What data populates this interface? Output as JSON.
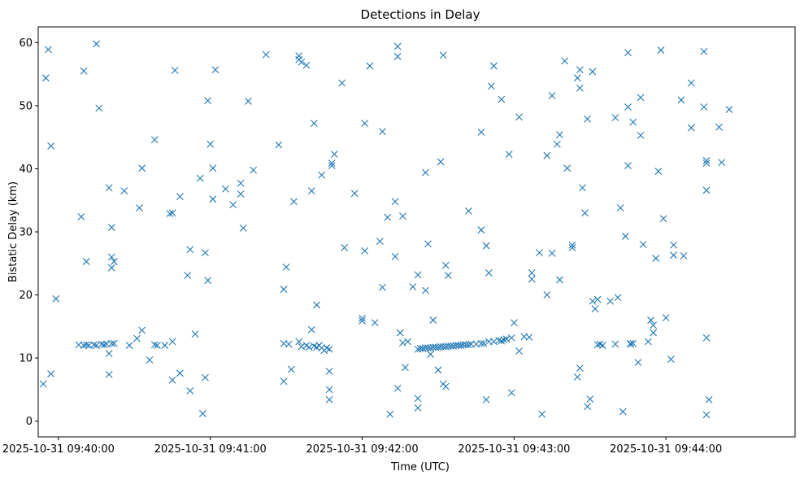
{
  "chart_data": {
    "type": "scatter",
    "title": "Detections in Delay",
    "xlabel": "Time (UTC)",
    "ylabel": "Bistatic Delay (km)",
    "marker": "x",
    "color": "#1f77b4",
    "grid": false,
    "xlim": [
      "2025-10-31 09:39:52",
      "2025-10-31 09:44:51"
    ],
    "ylim": [
      -2.5,
      62.5
    ],
    "xticks": [
      {
        "t": "2025-10-31 09:40:00",
        "label": "2025-10-31 09:40:00"
      },
      {
        "t": "2025-10-31 09:41:00",
        "label": "2025-10-31 09:41:00"
      },
      {
        "t": "2025-10-31 09:42:00",
        "label": "2025-10-31 09:42:00"
      },
      {
        "t": "2025-10-31 09:43:00",
        "label": "2025-10-31 09:43:00"
      },
      {
        "t": "2025-10-31 09:44:00",
        "label": "2025-10-31 09:44:00"
      }
    ],
    "yticks": [
      0,
      10,
      20,
      30,
      40,
      50,
      60
    ],
    "points": [
      [
        "2025-10-31 09:39:54",
        5.9
      ],
      [
        "2025-10-31 09:39:55",
        54.4
      ],
      [
        "2025-10-31 09:39:56",
        58.9
      ],
      [
        "2025-10-31 09:39:57",
        43.6
      ],
      [
        "2025-10-31 09:39:57",
        7.5
      ],
      [
        "2025-10-31 09:39:59",
        19.4
      ],
      [
        "2025-10-31 09:40:09",
        32.4
      ],
      [
        "2025-10-31 09:40:10",
        55.5
      ],
      [
        "2025-10-31 09:40:11",
        25.3
      ],
      [
        "2025-10-31 09:40:15",
        59.8
      ],
      [
        "2025-10-31 09:40:16",
        49.6
      ],
      [
        "2025-10-31 09:40:08",
        12.1
      ],
      [
        "2025-10-31 09:40:10",
        12.0
      ],
      [
        "2025-10-31 09:40:11",
        12.1
      ],
      [
        "2025-10-31 09:40:12",
        12.0
      ],
      [
        "2025-10-31 09:40:14",
        12.1
      ],
      [
        "2025-10-31 09:40:15",
        12.0
      ],
      [
        "2025-10-31 09:40:17",
        12.2
      ],
      [
        "2025-10-31 09:40:18",
        12.1
      ],
      [
        "2025-10-31 09:40:19",
        12.2
      ],
      [
        "2025-10-31 09:40:21",
        12.3
      ],
      [
        "2025-10-31 09:40:22",
        12.3
      ],
      [
        "2025-10-31 09:40:20",
        10.7
      ],
      [
        "2025-10-31 09:40:20",
        7.4
      ],
      [
        "2025-10-31 09:40:20",
        37.0
      ],
      [
        "2025-10-31 09:40:21",
        24.3
      ],
      [
        "2025-10-31 09:40:21",
        30.7
      ],
      [
        "2025-10-31 09:40:21",
        26.0
      ],
      [
        "2025-10-31 09:40:22",
        25.3
      ],
      [
        "2025-10-31 09:40:26",
        36.5
      ],
      [
        "2025-10-31 09:40:28",
        12.0
      ],
      [
        "2025-10-31 09:40:31",
        13.1
      ],
      [
        "2025-10-31 09:40:32",
        33.8
      ],
      [
        "2025-10-31 09:40:33",
        40.1
      ],
      [
        "2025-10-31 09:40:33",
        14.4
      ],
      [
        "2025-10-31 09:40:36",
        9.7
      ],
      [
        "2025-10-31 09:40:38",
        44.6
      ],
      [
        "2025-10-31 09:40:38",
        12.1
      ],
      [
        "2025-10-31 09:40:39",
        12.0
      ],
      [
        "2025-10-31 09:40:42",
        12.0
      ],
      [
        "2025-10-31 09:40:44",
        32.9
      ],
      [
        "2025-10-31 09:40:45",
        33.0
      ],
      [
        "2025-10-31 09:40:45",
        6.5
      ],
      [
        "2025-10-31 09:40:45",
        12.6
      ],
      [
        "2025-10-31 09:40:46",
        55.6
      ],
      [
        "2025-10-31 09:40:48",
        7.6
      ],
      [
        "2025-10-31 09:40:48",
        35.6
      ],
      [
        "2025-10-31 09:40:51",
        23.1
      ],
      [
        "2025-10-31 09:40:52",
        27.2
      ],
      [
        "2025-10-31 09:40:52",
        4.8
      ],
      [
        "2025-10-31 09:40:54",
        13.8
      ],
      [
        "2025-10-31 09:40:56",
        38.5
      ],
      [
        "2025-10-31 09:40:57",
        1.2
      ],
      [
        "2025-10-31 09:40:58",
        26.7
      ],
      [
        "2025-10-31 09:40:58",
        6.9
      ],
      [
        "2025-10-31 09:40:59",
        22.3
      ],
      [
        "2025-10-31 09:40:59",
        50.8
      ],
      [
        "2025-10-31 09:41:00",
        43.9
      ],
      [
        "2025-10-31 09:41:01",
        40.1
      ],
      [
        "2025-10-31 09:41:01",
        35.2
      ],
      [
        "2025-10-31 09:41:02",
        55.7
      ],
      [
        "2025-10-31 09:41:06",
        36.8
      ],
      [
        "2025-10-31 09:41:09",
        34.3
      ],
      [
        "2025-10-31 09:41:12",
        37.7
      ],
      [
        "2025-10-31 09:41:12",
        36.0
      ],
      [
        "2025-10-31 09:41:13",
        30.6
      ],
      [
        "2025-10-31 09:41:15",
        50.7
      ],
      [
        "2025-10-31 09:41:17",
        39.8
      ],
      [
        "2025-10-31 09:41:22",
        58.1
      ],
      [
        "2025-10-31 09:41:27",
        43.8
      ],
      [
        "2025-10-31 09:41:29",
        20.9
      ],
      [
        "2025-10-31 09:41:29",
        6.3
      ],
      [
        "2025-10-31 09:41:29",
        12.3
      ],
      [
        "2025-10-31 09:41:30",
        24.4
      ],
      [
        "2025-10-31 09:41:31",
        12.2
      ],
      [
        "2025-10-31 09:41:32",
        8.2
      ],
      [
        "2025-10-31 09:41:33",
        34.8
      ],
      [
        "2025-10-31 09:41:35",
        57.3
      ],
      [
        "2025-10-31 09:41:35",
        57.9
      ],
      [
        "2025-10-31 09:41:36",
        56.9
      ],
      [
        "2025-10-31 09:41:38",
        56.4
      ],
      [
        "2025-10-31 09:41:35",
        12.6
      ],
      [
        "2025-10-31 09:41:36",
        11.8
      ],
      [
        "2025-10-31 09:41:38",
        12.0
      ],
      [
        "2025-10-31 09:41:39",
        11.7
      ],
      [
        "2025-10-31 09:41:41",
        11.9
      ],
      [
        "2025-10-31 09:41:42",
        11.7
      ],
      [
        "2025-10-31 09:41:43",
        12.0
      ],
      [
        "2025-10-31 09:41:44",
        11.6
      ],
      [
        "2025-10-31 09:41:45",
        11.2
      ],
      [
        "2025-10-31 09:41:46",
        11.6
      ],
      [
        "2025-10-31 09:41:47",
        11.4
      ],
      [
        "2025-10-31 09:41:40",
        14.5
      ],
      [
        "2025-10-31 09:41:40",
        36.5
      ],
      [
        "2025-10-31 09:41:41",
        47.2
      ],
      [
        "2025-10-31 09:41:42",
        18.4
      ],
      [
        "2025-10-31 09:41:44",
        39.0
      ],
      [
        "2025-10-31 09:41:47",
        7.9
      ],
      [
        "2025-10-31 09:41:47",
        5.0
      ],
      [
        "2025-10-31 09:41:47",
        3.4
      ],
      [
        "2025-10-31 09:41:48",
        40.5
      ],
      [
        "2025-10-31 09:41:48",
        40.9
      ],
      [
        "2025-10-31 09:41:49",
        42.3
      ],
      [
        "2025-10-31 09:41:52",
        53.6
      ],
      [
        "2025-10-31 09:41:53",
        27.5
      ],
      [
        "2025-10-31 09:41:57",
        36.1
      ],
      [
        "2025-10-31 09:42:00",
        15.9
      ],
      [
        "2025-10-31 09:42:00",
        16.3
      ],
      [
        "2025-10-31 09:42:01",
        47.2
      ],
      [
        "2025-10-31 09:42:01",
        27.0
      ],
      [
        "2025-10-31 09:42:03",
        56.3
      ],
      [
        "2025-10-31 09:42:05",
        15.6
      ],
      [
        "2025-10-31 09:42:07",
        28.5
      ],
      [
        "2025-10-31 09:42:08",
        45.9
      ],
      [
        "2025-10-31 09:42:08",
        21.2
      ],
      [
        "2025-10-31 09:42:10",
        32.3
      ],
      [
        "2025-10-31 09:42:11",
        1.1
      ],
      [
        "2025-10-31 09:42:13",
        34.8
      ],
      [
        "2025-10-31 09:42:13",
        26.1
      ],
      [
        "2025-10-31 09:42:14",
        59.4
      ],
      [
        "2025-10-31 09:42:14",
        57.8
      ],
      [
        "2025-10-31 09:42:14",
        5.2
      ],
      [
        "2025-10-31 09:42:15",
        14.0
      ],
      [
        "2025-10-31 09:42:16",
        12.4
      ],
      [
        "2025-10-31 09:42:16",
        32.5
      ],
      [
        "2025-10-31 09:42:17",
        8.5
      ],
      [
        "2025-10-31 09:42:18",
        12.6
      ],
      [
        "2025-10-31 09:42:20",
        21.3
      ],
      [
        "2025-10-31 09:42:22",
        23.2
      ],
      [
        "2025-10-31 09:42:22",
        3.6
      ],
      [
        "2025-10-31 09:42:22",
        2.1
      ],
      [
        "2025-10-31 09:42:25",
        39.4
      ],
      [
        "2025-10-31 09:42:25",
        20.7
      ],
      [
        "2025-10-31 09:42:26",
        28.1
      ],
      [
        "2025-10-31 09:42:27",
        10.6
      ],
      [
        "2025-10-31 09:42:28",
        16.0
      ],
      [
        "2025-10-31 09:42:30",
        8.1
      ],
      [
        "2025-10-31 09:42:31",
        41.1
      ],
      [
        "2025-10-31 09:42:32",
        5.9
      ],
      [
        "2025-10-31 09:42:33",
        5.5
      ],
      [
        "2025-10-31 09:42:32",
        58.0
      ],
      [
        "2025-10-31 09:42:33",
        24.7
      ],
      [
        "2025-10-31 09:42:34",
        23.1
      ],
      [
        "2025-10-31 09:42:22",
        11.4
      ],
      [
        "2025-10-31 09:42:23",
        11.5
      ],
      [
        "2025-10-31 09:42:24",
        11.5
      ],
      [
        "2025-10-31 09:42:25",
        11.6
      ],
      [
        "2025-10-31 09:42:26",
        11.6
      ],
      [
        "2025-10-31 09:42:27",
        11.6
      ],
      [
        "2025-10-31 09:42:28",
        11.7
      ],
      [
        "2025-10-31 09:42:29",
        11.7
      ],
      [
        "2025-10-31 09:42:30",
        11.7
      ],
      [
        "2025-10-31 09:42:31",
        11.8
      ],
      [
        "2025-10-31 09:42:32",
        11.8
      ],
      [
        "2025-10-31 09:42:33",
        11.8
      ],
      [
        "2025-10-31 09:42:34",
        11.9
      ],
      [
        "2025-10-31 09:42:35",
        11.9
      ],
      [
        "2025-10-31 09:42:36",
        11.9
      ],
      [
        "2025-10-31 09:42:37",
        12.0
      ],
      [
        "2025-10-31 09:42:38",
        12.0
      ],
      [
        "2025-10-31 09:42:39",
        12.0
      ],
      [
        "2025-10-31 09:42:40",
        12.1
      ],
      [
        "2025-10-31 09:42:41",
        12.1
      ],
      [
        "2025-10-31 09:42:42",
        12.1
      ],
      [
        "2025-10-31 09:42:43",
        12.2
      ],
      [
        "2025-10-31 09:42:45",
        12.2
      ],
      [
        "2025-10-31 09:42:47",
        12.3
      ],
      [
        "2025-10-31 09:42:48",
        12.3
      ],
      [
        "2025-10-31 09:42:42",
        33.3
      ],
      [
        "2025-10-31 09:42:47",
        45.8
      ],
      [
        "2025-10-31 09:42:47",
        30.3
      ],
      [
        "2025-10-31 09:42:49",
        27.8
      ],
      [
        "2025-10-31 09:42:50",
        23.5
      ],
      [
        "2025-10-31 09:42:49",
        3.4
      ],
      [
        "2025-10-31 09:42:50",
        12.6
      ],
      [
        "2025-10-31 09:42:51",
        53.1
      ],
      [
        "2025-10-31 09:42:52",
        56.3
      ],
      [
        "2025-10-31 09:42:52",
        12.6
      ],
      [
        "2025-10-31 09:42:54",
        12.8
      ],
      [
        "2025-10-31 09:42:55",
        51.0
      ],
      [
        "2025-10-31 09:42:55",
        12.7
      ],
      [
        "2025-10-31 09:42:56",
        12.9
      ],
      [
        "2025-10-31 09:42:57",
        13.0
      ],
      [
        "2025-10-31 09:42:59",
        13.2
      ],
      [
        "2025-10-31 09:42:58",
        42.3
      ],
      [
        "2025-10-31 09:42:59",
        4.5
      ],
      [
        "2025-10-31 09:43:00",
        15.6
      ],
      [
        "2025-10-31 09:43:02",
        11.1
      ],
      [
        "2025-10-31 09:43:02",
        48.2
      ],
      [
        "2025-10-31 09:43:04",
        13.4
      ],
      [
        "2025-10-31 09:43:06",
        13.3
      ],
      [
        "2025-10-31 09:43:07",
        23.5
      ],
      [
        "2025-10-31 09:43:07",
        22.5
      ],
      [
        "2025-10-31 09:43:10",
        26.7
      ],
      [
        "2025-10-31 09:43:11",
        1.1
      ],
      [
        "2025-10-31 09:43:13",
        20.0
      ],
      [
        "2025-10-31 09:43:13",
        42.1
      ],
      [
        "2025-10-31 09:43:15",
        26.6
      ],
      [
        "2025-10-31 09:43:15",
        51.6
      ],
      [
        "2025-10-31 09:43:17",
        43.9
      ],
      [
        "2025-10-31 09:43:18",
        45.4
      ],
      [
        "2025-10-31 09:43:18",
        22.4
      ],
      [
        "2025-10-31 09:43:20",
        57.1
      ],
      [
        "2025-10-31 09:43:21",
        40.1
      ],
      [
        "2025-10-31 09:43:23",
        27.5
      ],
      [
        "2025-10-31 09:43:23",
        27.9
      ],
      [
        "2025-10-31 09:43:25",
        54.4
      ],
      [
        "2025-10-31 09:43:25",
        7.0
      ],
      [
        "2025-10-31 09:43:26",
        55.7
      ],
      [
        "2025-10-31 09:43:26",
        52.8
      ],
      [
        "2025-10-31 09:43:26",
        8.4
      ],
      [
        "2025-10-31 09:43:27",
        37.0
      ],
      [
        "2025-10-31 09:43:28",
        33.0
      ],
      [
        "2025-10-31 09:43:29",
        47.9
      ],
      [
        "2025-10-31 09:43:29",
        2.3
      ],
      [
        "2025-10-31 09:43:30",
        3.5
      ],
      [
        "2025-10-31 09:43:31",
        55.4
      ],
      [
        "2025-10-31 09:43:31",
        19.0
      ],
      [
        "2025-10-31 09:43:32",
        17.8
      ],
      [
        "2025-10-31 09:43:33",
        19.3
      ],
      [
        "2025-10-31 09:43:33",
        12.1
      ],
      [
        "2025-10-31 09:43:34",
        12.2
      ],
      [
        "2025-10-31 09:43:35",
        12.0
      ],
      [
        "2025-10-31 09:43:38",
        19.0
      ],
      [
        "2025-10-31 09:43:40",
        48.1
      ],
      [
        "2025-10-31 09:43:40",
        12.2
      ],
      [
        "2025-10-31 09:43:41",
        19.6
      ],
      [
        "2025-10-31 09:43:42",
        33.8
      ],
      [
        "2025-10-31 09:43:43",
        1.5
      ],
      [
        "2025-10-31 09:43:44",
        29.3
      ],
      [
        "2025-10-31 09:43:45",
        58.4
      ],
      [
        "2025-10-31 09:43:45",
        49.8
      ],
      [
        "2025-10-31 09:43:45",
        40.5
      ],
      [
        "2025-10-31 09:43:46",
        12.3
      ],
      [
        "2025-10-31 09:43:46",
        12.2
      ],
      [
        "2025-10-31 09:43:47",
        47.4
      ],
      [
        "2025-10-31 09:43:47",
        12.3
      ],
      [
        "2025-10-31 09:43:49",
        9.3
      ],
      [
        "2025-10-31 09:43:50",
        45.3
      ],
      [
        "2025-10-31 09:43:50",
        51.3
      ],
      [
        "2025-10-31 09:43:51",
        28.0
      ],
      [
        "2025-10-31 09:43:53",
        12.6
      ],
      [
        "2025-10-31 09:43:54",
        16.0
      ],
      [
        "2025-10-31 09:43:55",
        15.2
      ],
      [
        "2025-10-31 09:43:55",
        14.0
      ],
      [
        "2025-10-31 09:43:56",
        25.8
      ],
      [
        "2025-10-31 09:43:57",
        39.6
      ],
      [
        "2025-10-31 09:43:58",
        58.8
      ],
      [
        "2025-10-31 09:43:59",
        32.1
      ],
      [
        "2025-10-31 09:44:00",
        16.4
      ],
      [
        "2025-10-31 09:44:02",
        9.8
      ],
      [
        "2025-10-31 09:44:03",
        27.9
      ],
      [
        "2025-10-31 09:44:03",
        26.3
      ],
      [
        "2025-10-31 09:44:06",
        50.9
      ],
      [
        "2025-10-31 09:44:07",
        26.2
      ],
      [
        "2025-10-31 09:44:10",
        53.6
      ],
      [
        "2025-10-31 09:44:10",
        46.5
      ],
      [
        "2025-10-31 09:44:15",
        58.6
      ],
      [
        "2025-10-31 09:44:15",
        49.8
      ],
      [
        "2025-10-31 09:44:16",
        41.3
      ],
      [
        "2025-10-31 09:44:16",
        40.9
      ],
      [
        "2025-10-31 09:44:16",
        36.6
      ],
      [
        "2025-10-31 09:44:16",
        13.2
      ],
      [
        "2025-10-31 09:44:16",
        1.0
      ],
      [
        "2025-10-31 09:44:17",
        3.4
      ],
      [
        "2025-10-31 09:44:21",
        46.6
      ],
      [
        "2025-10-31 09:44:22",
        41.0
      ],
      [
        "2025-10-31 09:44:25",
        49.4
      ]
    ]
  }
}
